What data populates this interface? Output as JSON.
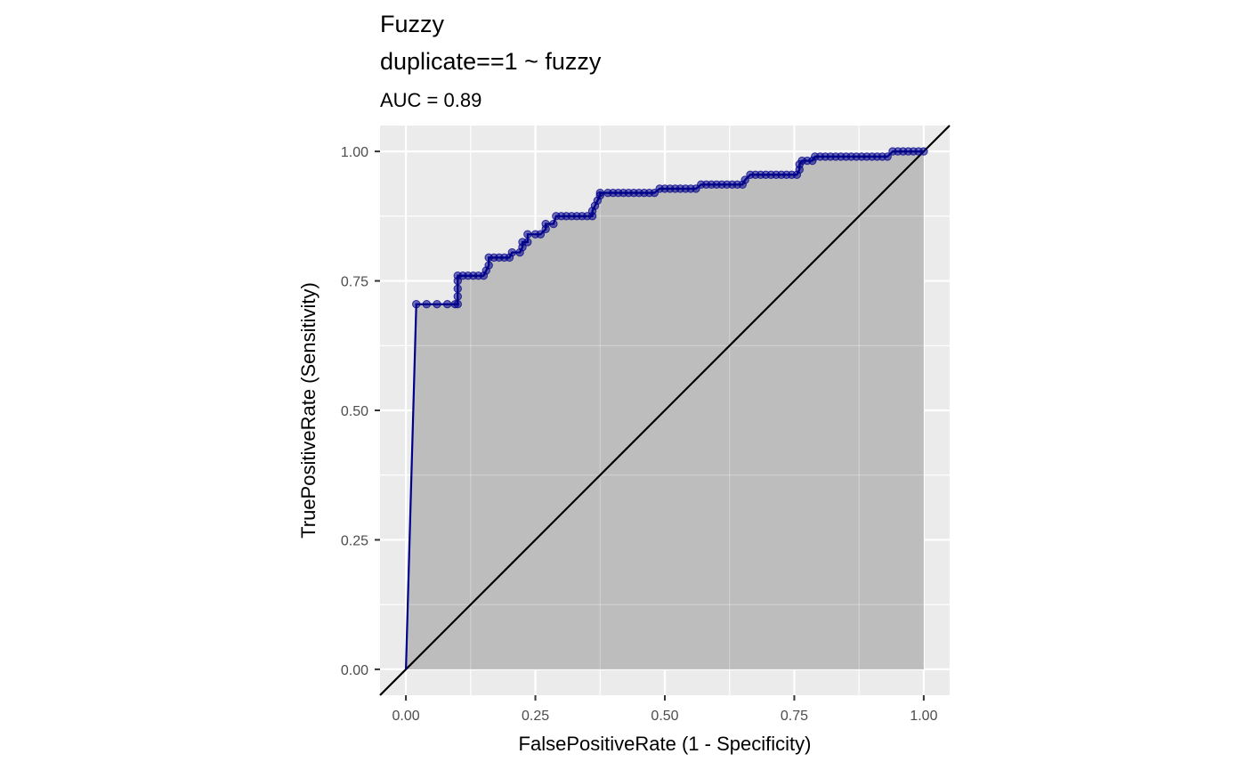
{
  "chart_data": {
    "type": "line",
    "title": "Fuzzy",
    "title_line2": "duplicate==1 ~ fuzzy",
    "subtitle": "AUC = 0.89",
    "xlabel": "FalsePositiveRate (1 - Specificity)",
    "ylabel": "TruePositiveRate (Sensitivity)",
    "xlim": [
      -0.05,
      1.05
    ],
    "ylim": [
      -0.05,
      1.05
    ],
    "x_ticks": [
      0.0,
      0.25,
      0.5,
      0.75,
      1.0
    ],
    "x_tick_labels": [
      "0.00",
      "0.25",
      "0.50",
      "0.75",
      "1.00"
    ],
    "y_ticks": [
      0.0,
      0.25,
      0.5,
      0.75,
      1.0
    ],
    "y_tick_labels": [
      "0.00",
      "0.25",
      "0.50",
      "0.75",
      "1.00"
    ],
    "grid": true,
    "reference_line": {
      "from": [
        -0.05,
        -0.05
      ],
      "to": [
        1.05,
        1.05
      ],
      "color": "#000000"
    },
    "series": [
      {
        "color": "#00008b",
        "fill": "#bdbdbd",
        "points": [
          [
            0.0,
            0.0
          ],
          [
            0.02,
            0.705
          ],
          [
            0.04,
            0.705
          ],
          [
            0.06,
            0.705
          ],
          [
            0.08,
            0.705
          ],
          [
            0.095,
            0.705
          ],
          [
            0.1,
            0.705
          ],
          [
            0.1,
            0.72
          ],
          [
            0.1,
            0.735
          ],
          [
            0.1,
            0.75
          ],
          [
            0.1,
            0.76
          ],
          [
            0.11,
            0.76
          ],
          [
            0.12,
            0.76
          ],
          [
            0.13,
            0.76
          ],
          [
            0.14,
            0.76
          ],
          [
            0.15,
            0.76
          ],
          [
            0.155,
            0.77
          ],
          [
            0.16,
            0.78
          ],
          [
            0.16,
            0.795
          ],
          [
            0.17,
            0.795
          ],
          [
            0.18,
            0.795
          ],
          [
            0.19,
            0.795
          ],
          [
            0.2,
            0.795
          ],
          [
            0.205,
            0.805
          ],
          [
            0.22,
            0.805
          ],
          [
            0.225,
            0.815
          ],
          [
            0.225,
            0.825
          ],
          [
            0.235,
            0.825
          ],
          [
            0.235,
            0.84
          ],
          [
            0.25,
            0.84
          ],
          [
            0.26,
            0.84
          ],
          [
            0.27,
            0.85
          ],
          [
            0.27,
            0.86
          ],
          [
            0.285,
            0.86
          ],
          [
            0.29,
            0.875
          ],
          [
            0.3,
            0.875
          ],
          [
            0.31,
            0.875
          ],
          [
            0.32,
            0.875
          ],
          [
            0.33,
            0.875
          ],
          [
            0.34,
            0.875
          ],
          [
            0.35,
            0.875
          ],
          [
            0.36,
            0.875
          ],
          [
            0.36,
            0.885
          ],
          [
            0.365,
            0.895
          ],
          [
            0.37,
            0.905
          ],
          [
            0.375,
            0.915
          ],
          [
            0.375,
            0.92
          ],
          [
            0.39,
            0.92
          ],
          [
            0.4,
            0.92
          ],
          [
            0.41,
            0.92
          ],
          [
            0.42,
            0.92
          ],
          [
            0.43,
            0.92
          ],
          [
            0.44,
            0.92
          ],
          [
            0.45,
            0.92
          ],
          [
            0.46,
            0.92
          ],
          [
            0.47,
            0.92
          ],
          [
            0.48,
            0.92
          ],
          [
            0.49,
            0.928
          ],
          [
            0.5,
            0.928
          ],
          [
            0.51,
            0.928
          ],
          [
            0.52,
            0.928
          ],
          [
            0.53,
            0.928
          ],
          [
            0.54,
            0.928
          ],
          [
            0.55,
            0.928
          ],
          [
            0.56,
            0.928
          ],
          [
            0.57,
            0.936
          ],
          [
            0.58,
            0.936
          ],
          [
            0.59,
            0.936
          ],
          [
            0.6,
            0.936
          ],
          [
            0.61,
            0.936
          ],
          [
            0.62,
            0.936
          ],
          [
            0.63,
            0.936
          ],
          [
            0.64,
            0.936
          ],
          [
            0.65,
            0.936
          ],
          [
            0.655,
            0.945
          ],
          [
            0.665,
            0.955
          ],
          [
            0.675,
            0.955
          ],
          [
            0.685,
            0.955
          ],
          [
            0.695,
            0.955
          ],
          [
            0.705,
            0.955
          ],
          [
            0.715,
            0.955
          ],
          [
            0.725,
            0.955
          ],
          [
            0.735,
            0.955
          ],
          [
            0.745,
            0.955
          ],
          [
            0.755,
            0.955
          ],
          [
            0.76,
            0.965
          ],
          [
            0.76,
            0.975
          ],
          [
            0.765,
            0.982
          ],
          [
            0.775,
            0.982
          ],
          [
            0.785,
            0.982
          ],
          [
            0.79,
            0.99
          ],
          [
            0.8,
            0.99
          ],
          [
            0.81,
            0.99
          ],
          [
            0.82,
            0.99
          ],
          [
            0.83,
            0.99
          ],
          [
            0.84,
            0.99
          ],
          [
            0.85,
            0.99
          ],
          [
            0.86,
            0.99
          ],
          [
            0.87,
            0.99
          ],
          [
            0.88,
            0.99
          ],
          [
            0.89,
            0.99
          ],
          [
            0.9,
            0.99
          ],
          [
            0.91,
            0.99
          ],
          [
            0.92,
            0.99
          ],
          [
            0.93,
            0.99
          ],
          [
            0.94,
            1.0
          ],
          [
            0.95,
            1.0
          ],
          [
            0.96,
            1.0
          ],
          [
            0.97,
            1.0
          ],
          [
            0.98,
            1.0
          ],
          [
            0.99,
            1.0
          ],
          [
            1.0,
            1.0
          ]
        ]
      }
    ]
  }
}
